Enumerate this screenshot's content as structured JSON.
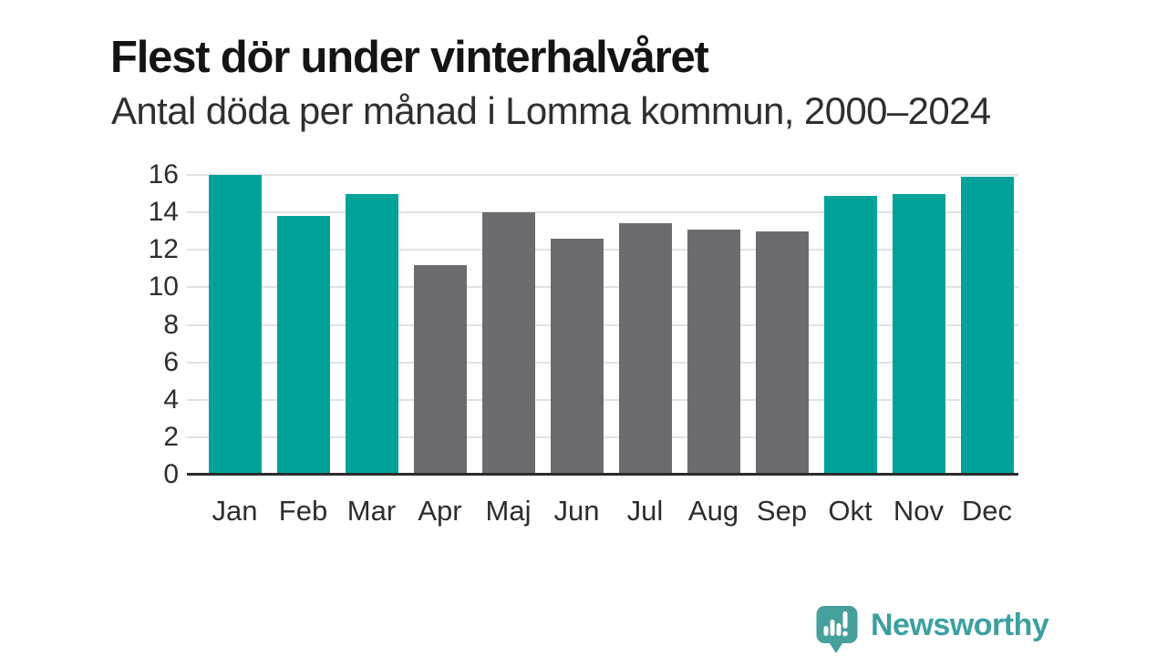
{
  "header": {
    "title": "Flest dör under vinterhalvåret",
    "subtitle": "Antal döda per månad i Lomma kommun, 2000–2024"
  },
  "chart_data": {
    "type": "bar",
    "title": "Flest dör under vinterhalvåret",
    "subtitle": "Antal döda per månad i Lomma kommun, 2000–2024",
    "categories": [
      "Jan",
      "Feb",
      "Mar",
      "Apr",
      "Maj",
      "Jun",
      "Jul",
      "Aug",
      "Sep",
      "Okt",
      "Nov",
      "Dec"
    ],
    "values": [
      16,
      13.8,
      15,
      11.2,
      14,
      12.6,
      13.4,
      13.1,
      13,
      14.9,
      15,
      15.9
    ],
    "groups": [
      "winter",
      "winter",
      "winter",
      "summer",
      "summer",
      "summer",
      "summer",
      "summer",
      "summer",
      "winter",
      "winter",
      "winter"
    ],
    "palette": {
      "winter": "#00a29a",
      "summer": "#6c6c70"
    },
    "xlabel": "",
    "ylabel": "",
    "ylim": [
      0,
      16
    ],
    "yticks": [
      0,
      2,
      4,
      6,
      8,
      10,
      12,
      14,
      16
    ],
    "grid": "horizontal-light",
    "legend": "none"
  },
  "footer": {
    "brand_name": "Newsworthy"
  },
  "colors": {
    "bar_winter": "#00a29a",
    "bar_summer": "#6c6c70",
    "brand_teal": "#3ba0a2",
    "logo_bubble": "#47a09c",
    "logo_glyphs": "#ffffff",
    "gridline": "#e2e2e2",
    "axis_line": "#2b2b2b",
    "title_text": "#141414",
    "subtitle_text": "#2f2f2f",
    "tick_text": "#2d2d2d"
  }
}
